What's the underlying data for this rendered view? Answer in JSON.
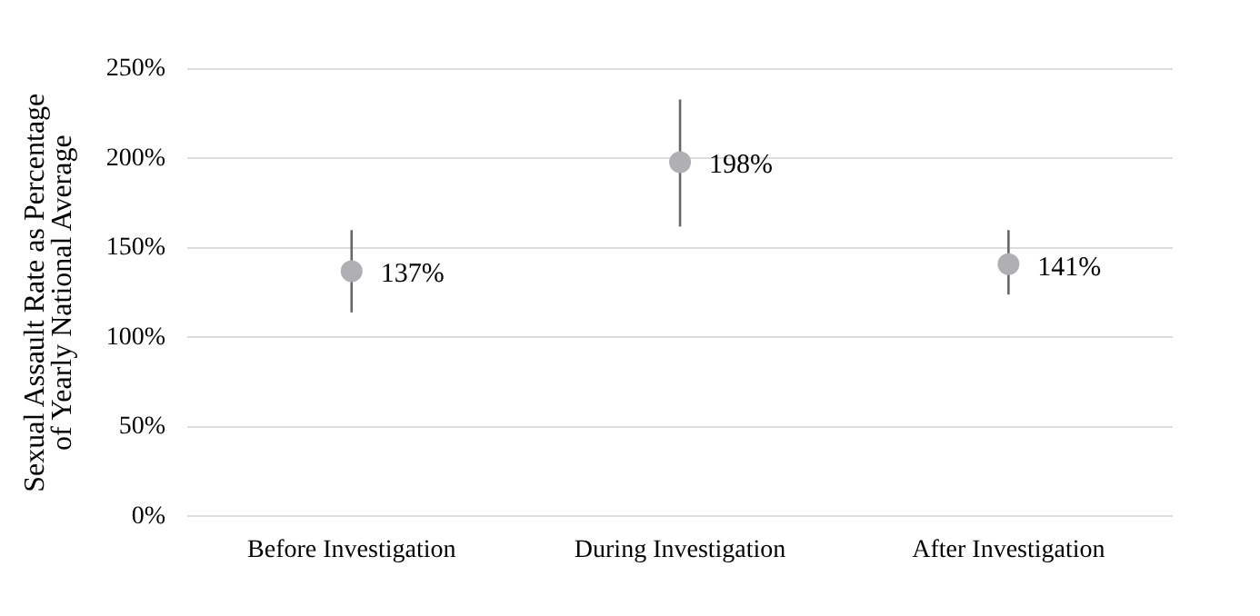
{
  "chart_data": {
    "type": "scatter",
    "ylabel": "Sexual Assault Rate as Percentage of Yearly National Average",
    "categories": [
      "Before Investigation",
      "During Investigation",
      "After Investigation"
    ],
    "series": [
      {
        "color": "#b0b0b4",
        "values": [
          137,
          198,
          141
        ],
        "errors": [
          [
            114,
            160
          ],
          [
            162,
            233
          ],
          [
            124,
            160
          ]
        ],
        "value_labels": [
          "137%",
          "198%",
          "141%"
        ]
      }
    ],
    "ylim": [
      0,
      250
    ],
    "yticks": [
      {
        "value": 0,
        "label": "0%"
      },
      {
        "value": 50,
        "label": "50%"
      },
      {
        "value": 100,
        "label": "100%"
      },
      {
        "value": 150,
        "label": "150%"
      },
      {
        "value": 200,
        "label": "200%"
      },
      {
        "value": 250,
        "label": "250%"
      }
    ],
    "grid": "y",
    "marker": "circle",
    "legend": false
  }
}
